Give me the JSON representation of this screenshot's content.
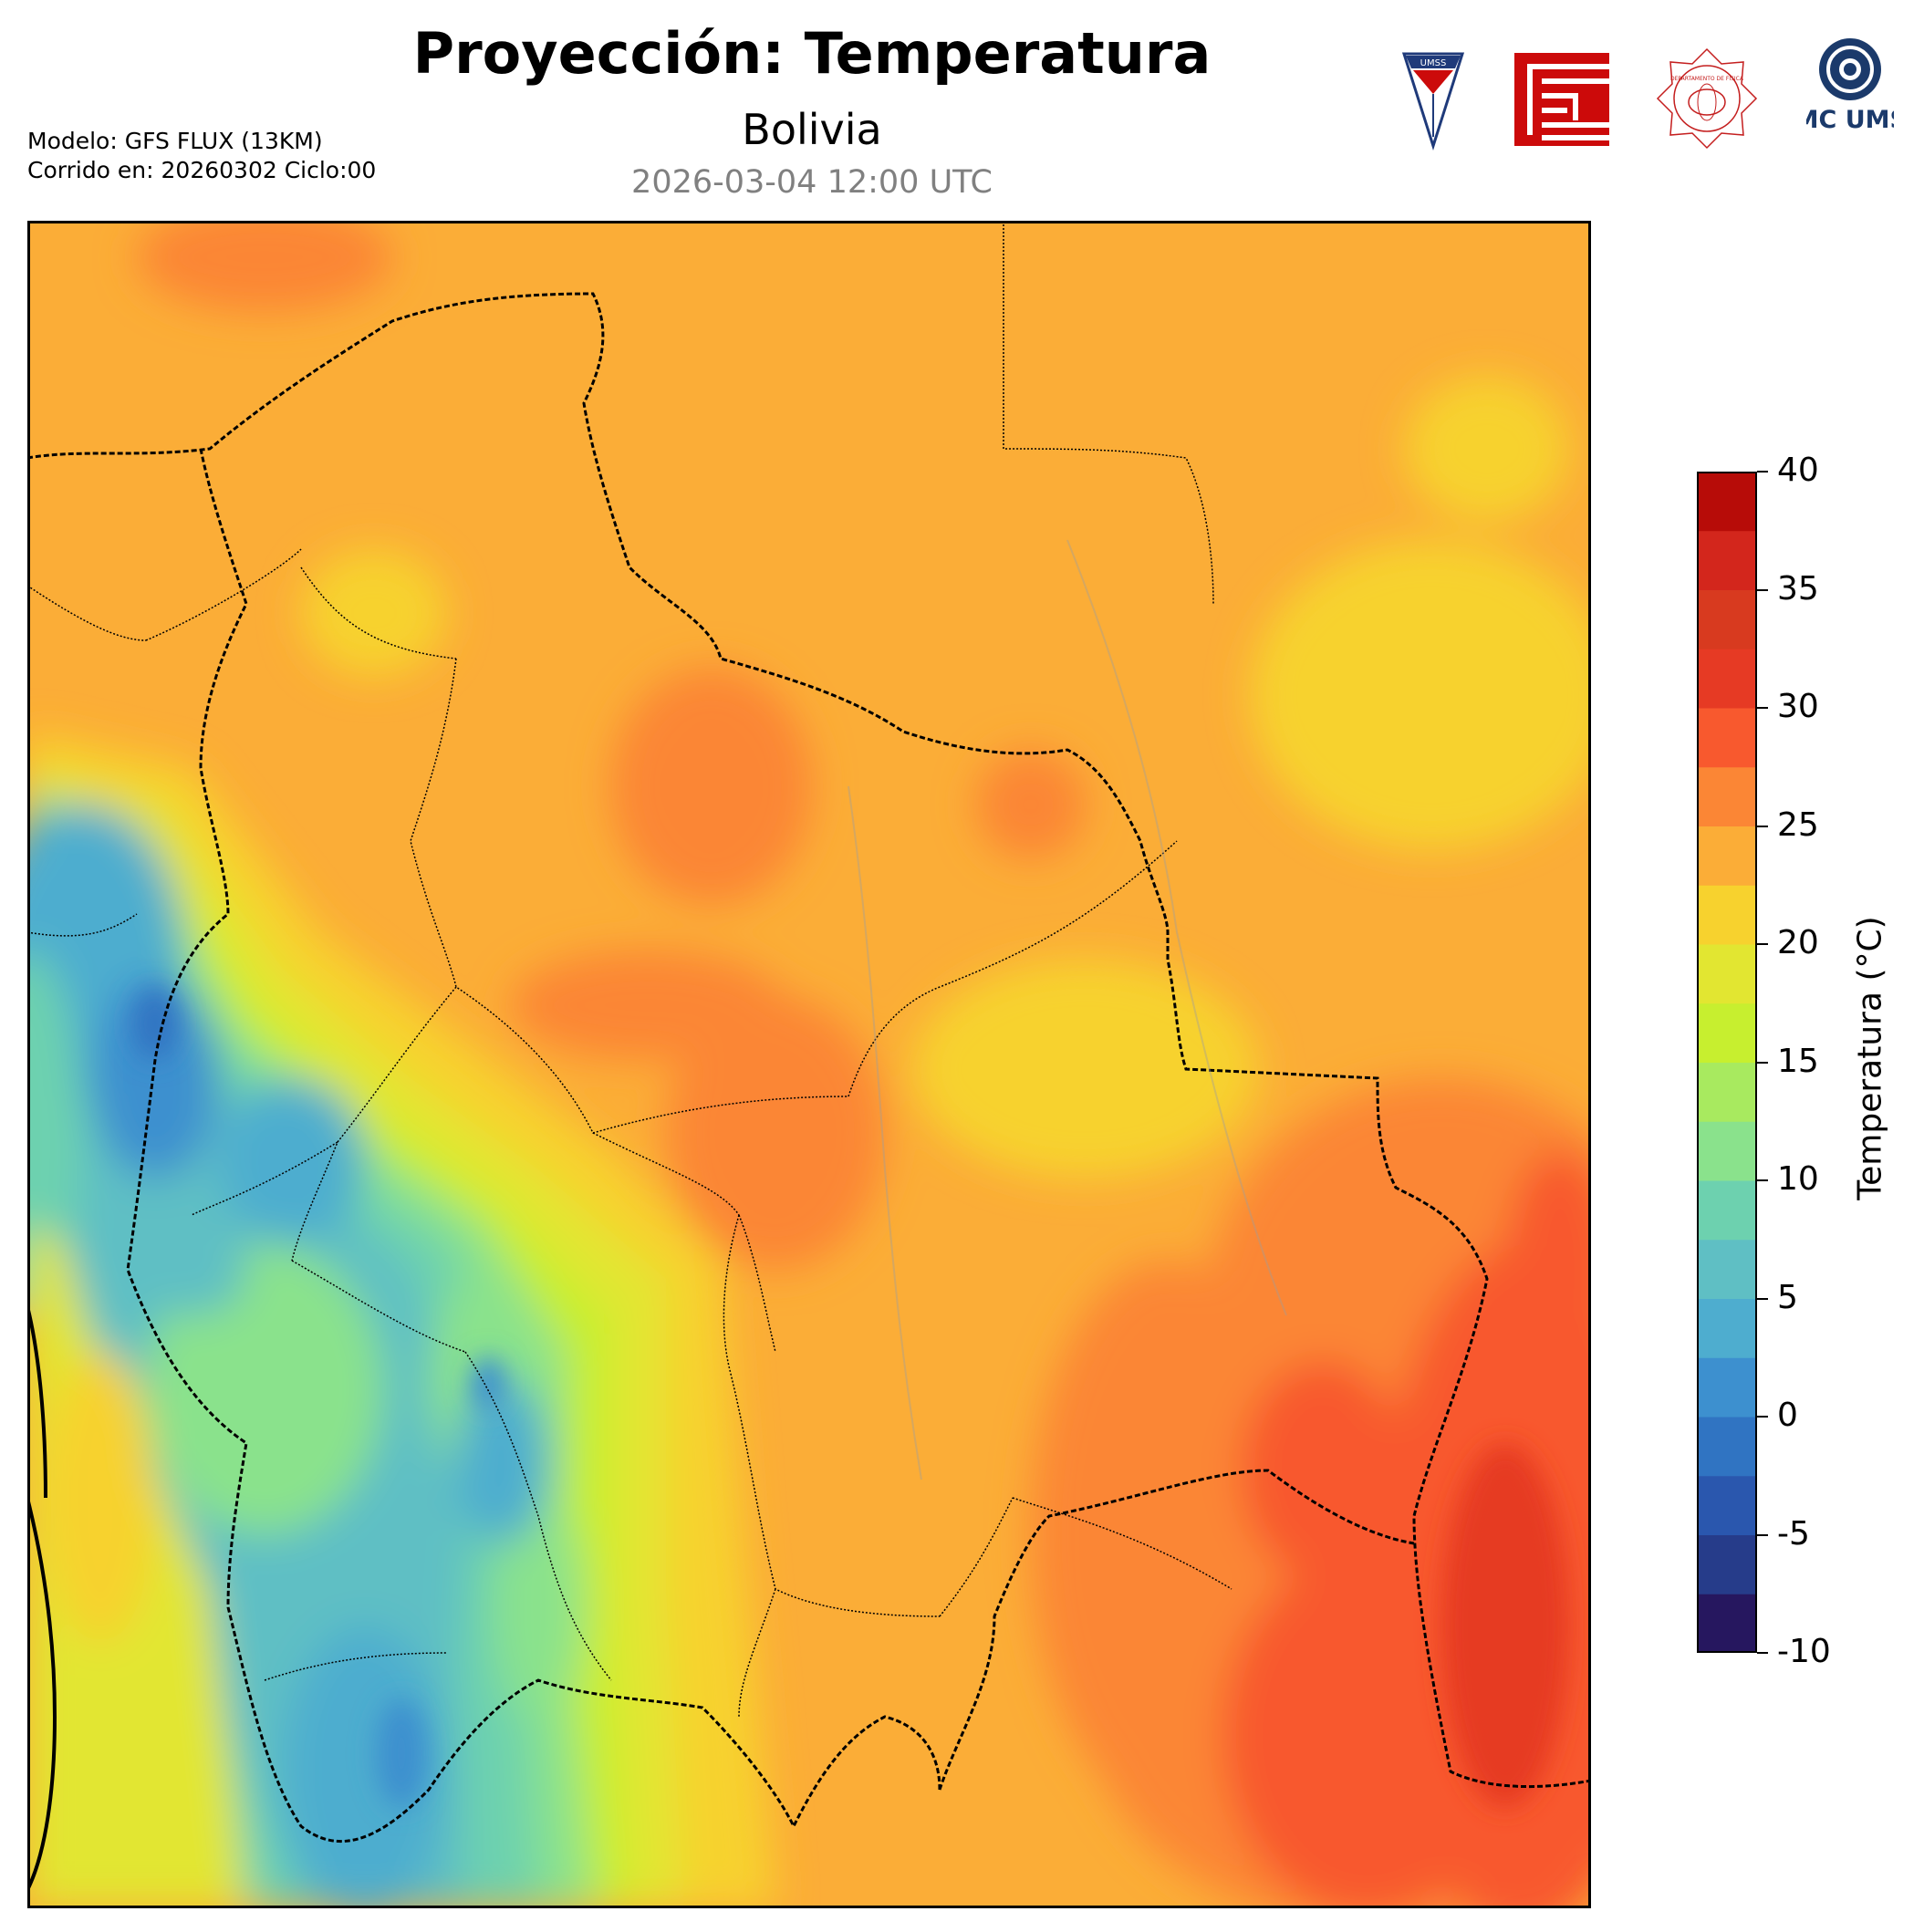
{
  "header": {
    "title": "Proyección: Temperatura",
    "subtitle": "Bolivia",
    "run_time": "2026-03-04 12:00 UTC",
    "model_line": "Modelo: GFS FLUX (13KM)",
    "run_line": "Corrido en: 20260302 Ciclo:00"
  },
  "logos": [
    {
      "name": "umss-shield-logo",
      "text": "UMSS"
    },
    {
      "name": "fcyt-logo",
      "text": ""
    },
    {
      "name": "departamento-fisica-logo",
      "text": "DEPARTAMENTO DE FÍSICA"
    },
    {
      "name": "cmc-umss-logo",
      "text": "CMC UMSS"
    }
  ],
  "colorbar": {
    "label": "Temperatura (°C)",
    "min": -10,
    "max": 40,
    "ticks": [
      "40",
      "35",
      "30",
      "25",
      "20",
      "15",
      "10",
      "5",
      "0",
      "-5",
      "-10"
    ],
    "colors": [
      "#26175f",
      "#263c8a",
      "#2a57ae",
      "#3074c2",
      "#3d90cf",
      "#4eadcf",
      "#5fbfc4",
      "#6dd1af",
      "#8ae28c",
      "#a8ea5f",
      "#c7ef2f",
      "#e2e631",
      "#f7d22e",
      "#fbad37",
      "#fb8635",
      "#f8592e",
      "#e63a24",
      "#d83a1f",
      "#d3261c",
      "#b70c08"
    ]
  },
  "map": {
    "region": "Bolivia",
    "variable": "Temperatura"
  }
}
